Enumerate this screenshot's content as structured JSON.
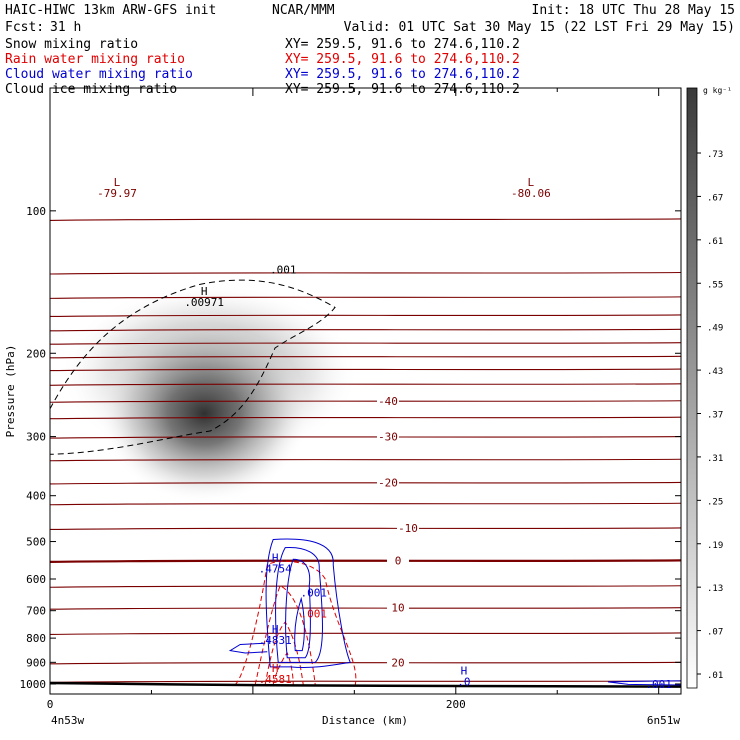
{
  "header": {
    "title": "HAIC-HIWC 13km ARW-GFS init",
    "center": "NCAR/MMM",
    "init": "Init: 18 UTC Thu 28 May 15",
    "fcst_label": "Fcst:",
    "fcst_value": "31 h",
    "valid": "Valid: 01 UTC Sat 30 May 15 (22 LST Fri 29 May 15)"
  },
  "fields": [
    {
      "name": "Snow mixing ratio",
      "xy": "XY= 259.5, 91.6 to 274.6,110.2",
      "color": "#000000"
    },
    {
      "name": "Rain water mixing ratio",
      "xy": "XY= 259.5, 91.6 to 274.6,110.2",
      "color": "#e00000"
    },
    {
      "name": "Cloud water mixing ratio",
      "xy": "XY= 259.5, 91.6 to 274.6,110.2",
      "color": "#0000d0"
    },
    {
      "name": "Cloud ice mixing ratio",
      "xy": "XY= 259.5, 91.6 to 274.6,110.2",
      "color": "#000000"
    }
  ],
  "colorbar": {
    "unit": "g kg⁻¹",
    "ticks": [
      ".73",
      ".67",
      ".61",
      ".55",
      ".49",
      ".43",
      ".37",
      ".31",
      ".25",
      ".19",
      ".13",
      ".07",
      ".01"
    ]
  },
  "chart_data": {
    "type": "contour",
    "xlabel": "Distance (km)",
    "ylabel": "Pressure (hPa)",
    "xlim": [
      0,
      311
    ],
    "ylim": [
      1050,
      55
    ],
    "y_scale": "log-pressure",
    "x_ticks": [
      {
        "value": 0,
        "label": "0"
      },
      {
        "value": 200,
        "label": "200"
      }
    ],
    "y_ticks": [
      100,
      200,
      300,
      400,
      500,
      600,
      700,
      800,
      900,
      1000
    ],
    "y_tick_labels": [
      "100",
      "200",
      "300",
      "400",
      "500",
      "600",
      "700",
      "800",
      "900",
      "1000"
    ],
    "endpoint_labels": [
      "4n53w",
      "6n51w"
    ],
    "colors": {
      "temperature": "#7a0000",
      "rain": "#e00000",
      "cloud_water": "#0000d0",
      "ice": "#000000",
      "terrain": "#000000"
    },
    "temperature_isotherms_level": [
      {
        "p": 104,
        "label": ""
      },
      {
        "p": 135,
        "label": ""
      },
      {
        "p": 152,
        "label": ""
      },
      {
        "p": 166,
        "label": ""
      },
      {
        "p": 178,
        "label": ""
      },
      {
        "p": 190,
        "label": ""
      },
      {
        "p": 203,
        "label": ""
      },
      {
        "p": 216,
        "label": ""
      },
      {
        "p": 232,
        "label": ""
      },
      {
        "p": 252,
        "label": "-40"
      },
      {
        "p": 273,
        "label": ""
      },
      {
        "p": 300,
        "label": "-30"
      },
      {
        "p": 335,
        "label": ""
      },
      {
        "p": 375,
        "label": "-20"
      },
      {
        "p": 415,
        "label": ""
      },
      {
        "p": 468,
        "label": "-10"
      },
      {
        "p": 548,
        "label": "0"
      },
      {
        "p": 620,
        "label": ""
      },
      {
        "p": 690,
        "label": "10"
      },
      {
        "p": 780,
        "label": ""
      },
      {
        "p": 900,
        "label": "20"
      },
      {
        "p": 985,
        "label": ""
      }
    ],
    "labeled_extrema": [
      {
        "kind": "L",
        "value": "-79.97",
        "x": 33,
        "p": 93
      },
      {
        "kind": "L",
        "value": "-80.06",
        "x": 237,
        "p": 93
      },
      {
        "kind": "H",
        "value": ".00971",
        "x": 76,
        "p": 158
      },
      {
        "kind": "H",
        "value": ".4754",
        "x": 111,
        "p": 578
      },
      {
        "kind": "H",
        "value": ".4831",
        "x": 111,
        "p": 820
      },
      {
        "kind": "H",
        "value": ".4581",
        "x": 111,
        "p": 990
      },
      {
        "kind": "H",
        "value": ".0",
        "x": 204,
        "p": 1003
      }
    ],
    "contour_labels": [
      {
        "text": ".001",
        "x": 115,
        "p": 133,
        "color": "#000000"
      },
      {
        "text": ".001",
        "x": 130,
        "p": 640,
        "color": "#0000d0"
      },
      {
        "text": ".001",
        "x": 130,
        "p": 710,
        "color": "#e00000"
      },
      {
        "text": ".001",
        "x": 300,
        "p": 1000,
        "color": "#0000d0"
      }
    ],
    "snow_max": {
      "x": 76,
      "p": 268,
      "value": 0.73
    },
    "terrain_surface_p": [
      [
        0,
        995
      ],
      [
        60,
        1002
      ],
      [
        120,
        1007
      ],
      [
        200,
        1010
      ],
      [
        311,
        1013
      ]
    ]
  }
}
